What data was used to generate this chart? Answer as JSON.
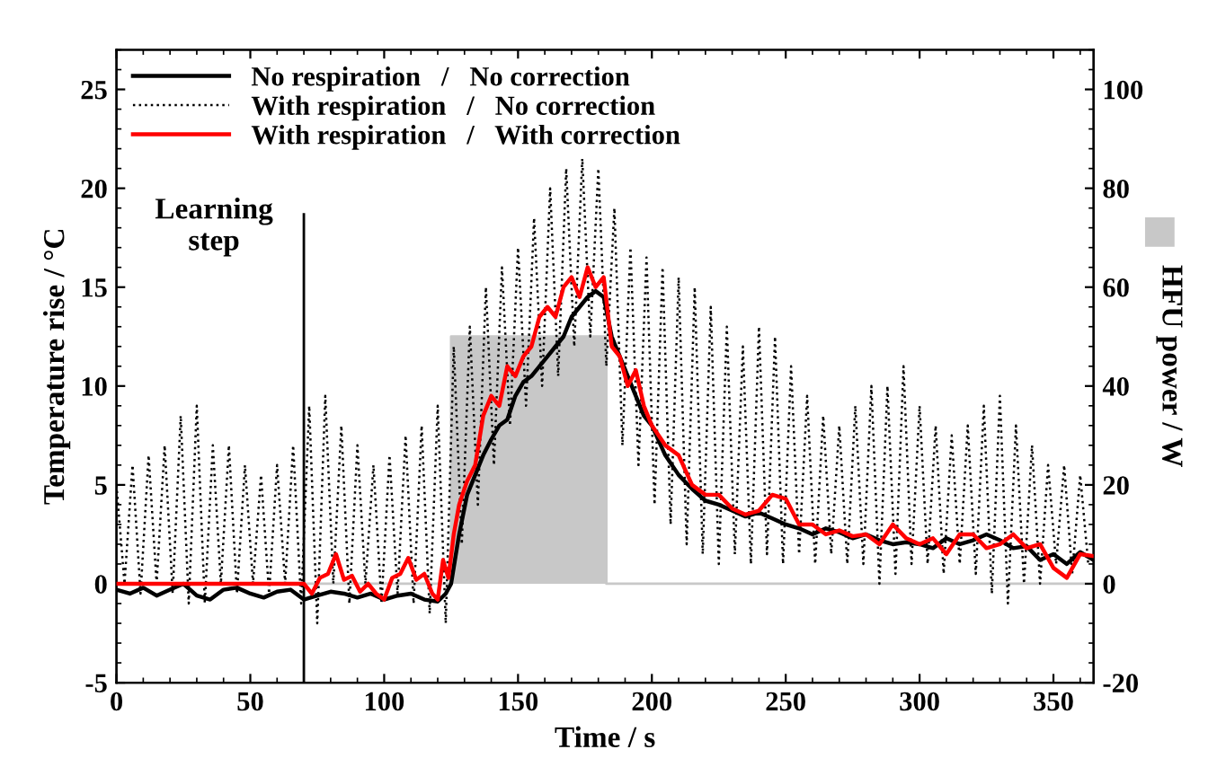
{
  "chart_data": {
    "type": "line",
    "xlabel": "Time / s",
    "ylabel": "Temperature rise / °C",
    "y2label": "HFU power / W",
    "xlim": [
      0,
      365
    ],
    "xticks": [
      0,
      50,
      100,
      150,
      200,
      250,
      300,
      350
    ],
    "ylim": [
      -5,
      27
    ],
    "yticks": [
      -5,
      0,
      5,
      10,
      15,
      20,
      25
    ],
    "y2lim": [
      -20,
      108
    ],
    "y2ticks": [
      -20,
      0,
      20,
      40,
      60,
      80,
      100
    ],
    "grid": false,
    "legend": "top left",
    "ref_lines": [
      {
        "axis": "x",
        "value": 70,
        "label": "Learning\nstep",
        "color": "#000000"
      }
    ],
    "series": [
      {
        "type": "area",
        "axis": "y2",
        "color": "#c8c8c8",
        "x": [
          0,
          125,
          125,
          183,
          183,
          365
        ],
        "values": [
          0,
          0,
          50,
          50,
          0,
          0
        ]
      },
      {
        "name": "No respiration   /   No correction",
        "color": "#000000",
        "line_style": "solid",
        "x": [
          0,
          5,
          10,
          15,
          20,
          25,
          30,
          35,
          40,
          45,
          50,
          55,
          60,
          65,
          70,
          75,
          80,
          85,
          90,
          95,
          100,
          105,
          110,
          115,
          120,
          123,
          125,
          128,
          131,
          134,
          137,
          140,
          143,
          146,
          149,
          152,
          155,
          158,
          161,
          164,
          167,
          170,
          173,
          176,
          179,
          182,
          185,
          188,
          191,
          194,
          197,
          200,
          205,
          210,
          215,
          220,
          225,
          230,
          235,
          240,
          245,
          250,
          255,
          260,
          265,
          270,
          275,
          280,
          285,
          290,
          295,
          300,
          305,
          310,
          315,
          320,
          325,
          330,
          335,
          340,
          345,
          350,
          355,
          360,
          365
        ],
        "values": [
          -0.3,
          -0.5,
          -0.2,
          -0.6,
          -0.3,
          0,
          -0.6,
          -0.8,
          -0.3,
          -0.2,
          -0.5,
          -0.7,
          -0.4,
          -0.3,
          -0.8,
          -0.6,
          -0.4,
          -0.5,
          -0.7,
          -0.5,
          -0.8,
          -0.6,
          -0.5,
          -0.8,
          -0.9,
          -0.5,
          0,
          2.5,
          4.5,
          5.5,
          6.5,
          7.3,
          8,
          8.3,
          9.5,
          10.2,
          10.5,
          11,
          11.5,
          12,
          12.5,
          13.5,
          14,
          14.5,
          14.8,
          14.5,
          12.5,
          11.5,
          10.5,
          9.5,
          8.5,
          8,
          6.5,
          5.5,
          4.8,
          4.2,
          4,
          3.7,
          3.4,
          3.6,
          3.3,
          3,
          2.8,
          2.5,
          2.8,
          2.6,
          2.3,
          2.5,
          2.2,
          2,
          2.1,
          2,
          1.8,
          2.3,
          2,
          2.2,
          2.5,
          2.2,
          1.8,
          1.9,
          1.2,
          1.5,
          1,
          1.6,
          1.2
        ]
      },
      {
        "name": "With respiration   /   No correction",
        "color": "#000000",
        "line_style": "dotted",
        "x": [
          0,
          3,
          6,
          9,
          12,
          15,
          18,
          21,
          24,
          27,
          30,
          33,
          36,
          39,
          42,
          45,
          48,
          51,
          54,
          57,
          60,
          63,
          66,
          69,
          72,
          75,
          78,
          81,
          84,
          87,
          90,
          93,
          96,
          99,
          102,
          105,
          108,
          111,
          114,
          117,
          120,
          123,
          126,
          129,
          132,
          135,
          138,
          141,
          144,
          147,
          150,
          153,
          156,
          159,
          162,
          165,
          168,
          171,
          174,
          177,
          180,
          183,
          186,
          189,
          192,
          195,
          198,
          201,
          204,
          207,
          210,
          213,
          216,
          219,
          222,
          225,
          228,
          231,
          234,
          237,
          240,
          243,
          246,
          249,
          252,
          255,
          258,
          261,
          264,
          267,
          270,
          273,
          276,
          279,
          282,
          285,
          288,
          291,
          294,
          297,
          300,
          303,
          306,
          309,
          312,
          315,
          318,
          321,
          324,
          327,
          330,
          333,
          336,
          339,
          342,
          345,
          348,
          351,
          354,
          357,
          360,
          363
        ],
        "values": [
          5,
          0,
          6,
          -0.5,
          6.5,
          0,
          7,
          -0.5,
          8.5,
          -1,
          9,
          -1,
          7,
          0,
          7,
          -0.5,
          6,
          0,
          5.5,
          -0.5,
          6,
          0,
          7,
          -1,
          9,
          -2,
          9.5,
          0,
          8,
          -1,
          7,
          0,
          6,
          -1,
          6.5,
          -0.5,
          7.5,
          -1,
          8,
          -1.5,
          9,
          -2,
          12,
          2,
          13,
          4,
          15,
          6,
          16,
          8,
          17,
          9,
          18.5,
          10,
          20,
          10.5,
          21,
          12,
          21.5,
          12.5,
          21,
          11,
          19,
          7,
          17,
          6,
          16.5,
          4,
          16,
          3,
          15.5,
          2,
          15,
          1.5,
          14,
          1,
          13,
          1.5,
          12,
          1,
          13,
          1.5,
          12.5,
          1,
          11,
          1.5,
          9.5,
          1,
          8.5,
          1.5,
          8,
          1,
          9,
          1,
          10,
          0,
          10,
          0.5,
          11,
          1,
          9,
          1,
          8,
          0.5,
          7.5,
          1,
          8,
          0.5,
          9,
          -0.5,
          9.5,
          -1,
          8,
          0,
          7,
          0,
          6,
          1,
          6,
          0.5,
          5.5,
          1
        ]
      },
      {
        "name": "With respiration   /   With correction",
        "color": "#ff0000",
        "line_style": "solid",
        "x": [
          0,
          70,
          73,
          76,
          79,
          82,
          85,
          88,
          91,
          94,
          97,
          100,
          103,
          106,
          109,
          112,
          115,
          118,
          120,
          122,
          124,
          126,
          128,
          131,
          134,
          137,
          140,
          143,
          146,
          149,
          152,
          155,
          158,
          161,
          164,
          167,
          170,
          173,
          176,
          179,
          182,
          185,
          188,
          191,
          194,
          197,
          200,
          205,
          210,
          215,
          220,
          225,
          230,
          235,
          240,
          245,
          250,
          255,
          260,
          265,
          270,
          275,
          280,
          285,
          290,
          295,
          300,
          305,
          310,
          315,
          320,
          325,
          330,
          335,
          340,
          345,
          350,
          355,
          360,
          365
        ],
        "values": [
          0,
          0,
          -0.5,
          0.3,
          0.5,
          1.5,
          0.2,
          0.4,
          -0.4,
          0,
          -0.5,
          -0.8,
          0.3,
          0.5,
          1.3,
          0.2,
          0.5,
          -0.5,
          -0.8,
          1.2,
          0.3,
          2.5,
          4,
          5.2,
          6,
          8.5,
          9.5,
          9,
          11,
          10.5,
          11.5,
          12,
          13.5,
          14,
          13.5,
          15,
          15.5,
          14.5,
          16,
          15,
          15.5,
          12,
          11.5,
          10,
          10.8,
          9,
          8,
          7,
          6.5,
          5,
          4.5,
          4.5,
          3.8,
          3.5,
          3.7,
          4.5,
          4.3,
          3,
          3,
          2.5,
          2.7,
          2.4,
          2.5,
          2,
          3,
          2.3,
          2,
          2.3,
          1.5,
          2.5,
          2.5,
          1.8,
          2,
          2.5,
          1.8,
          2,
          0.8,
          0.3,
          1.5,
          1.4
        ]
      }
    ]
  }
}
